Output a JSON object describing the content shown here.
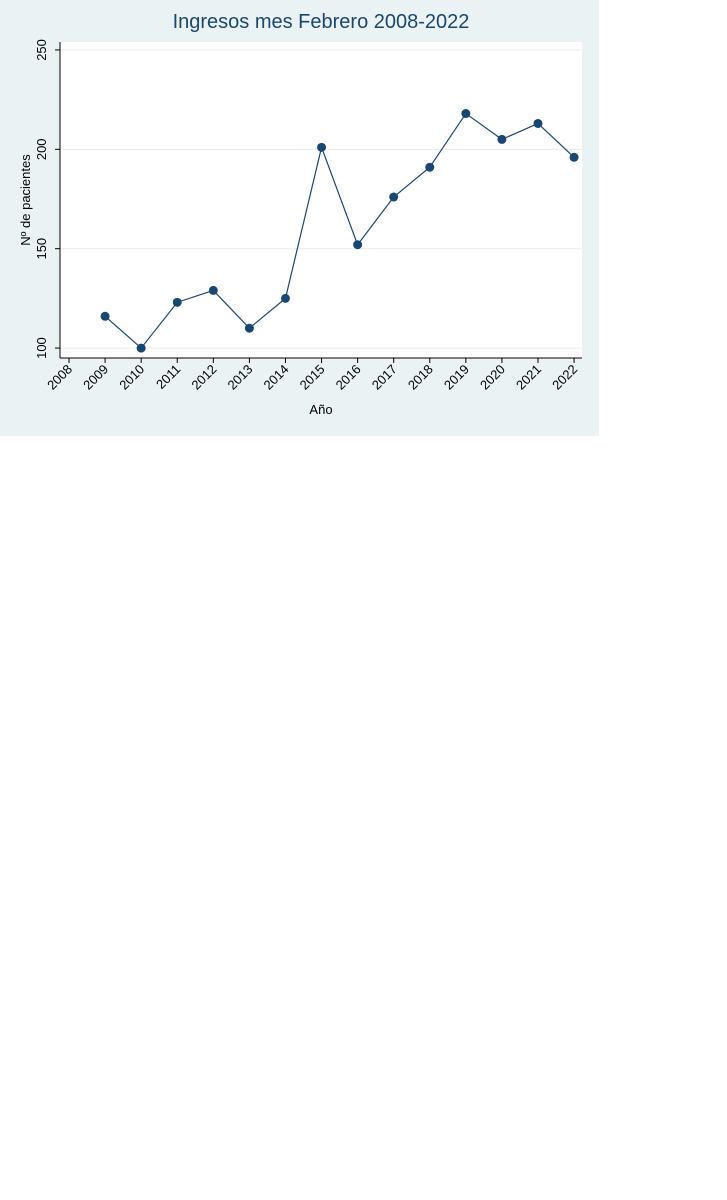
{
  "chart_data": {
    "type": "line",
    "title": "Ingresos mes Febrero 2008-2022",
    "x_label": "Año",
    "y_label": "Nº de pacientes",
    "x": [
      2009,
      2010,
      2011,
      2012,
      2013,
      2014,
      2015,
      2016,
      2017,
      2018,
      2019,
      2020,
      2021,
      2022
    ],
    "series": [
      {
        "name": "Ingresos",
        "color": "#1a476f",
        "values": [
          116,
          100,
          123,
          129,
          110,
          125,
          201,
          152,
          176,
          191,
          218,
          205,
          213,
          196
        ]
      }
    ],
    "xlim": [
      2007.75,
      2022.22
    ],
    "xticks": [
      2008,
      2009,
      2010,
      2011,
      2012,
      2013,
      2014,
      2015,
      2016,
      2017,
      2018,
      2019,
      2020,
      2021,
      2022
    ],
    "ylim": [
      95,
      254
    ],
    "yticks": [
      100,
      150,
      200,
      250
    ],
    "grid": true
  }
}
